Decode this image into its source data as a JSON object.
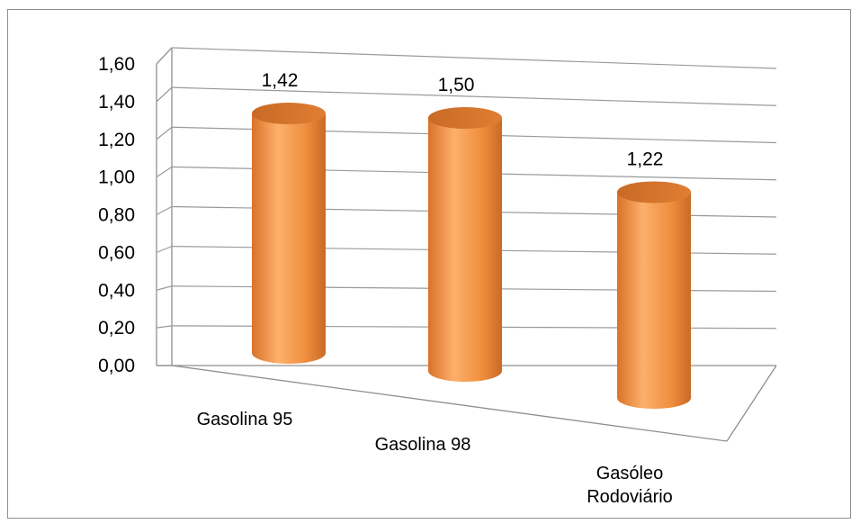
{
  "chart_data": {
    "type": "bar",
    "style": "3d-cylinder",
    "categories": [
      "Gasolina 95",
      "Gasolina 98",
      "Gasóleo Rodoviário"
    ],
    "values": [
      1.42,
      1.5,
      1.22
    ],
    "data_labels": [
      "1,42",
      "1,50",
      "1,22"
    ],
    "ylim": [
      0,
      1.6
    ],
    "y_ticks": [
      "0,00",
      "0,20",
      "0,40",
      "0,60",
      "0,80",
      "1,00",
      "1,20",
      "1,40",
      "1,60"
    ],
    "grid": true,
    "legend": "none",
    "bar_color": "#ed8a3a",
    "title": "",
    "xlabel": "",
    "ylabel": ""
  }
}
